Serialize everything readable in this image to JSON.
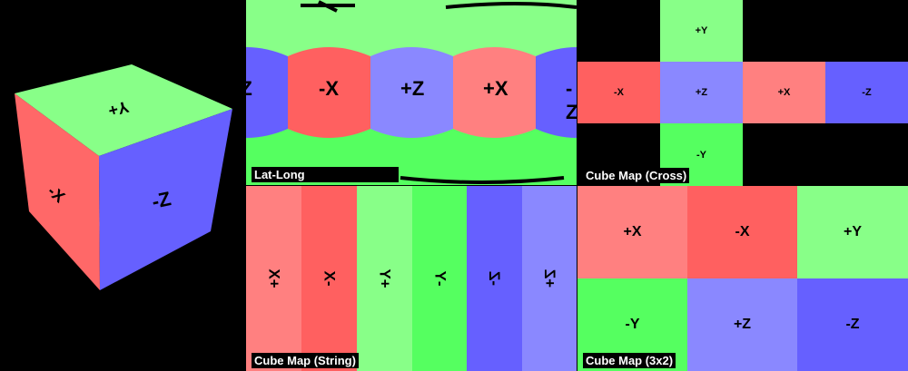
{
  "colors": {
    "+X": "#ff8080",
    "-X": "#ff6060",
    "+Y": "#88ff88",
    "-Y": "#55ff60",
    "+Z": "#8a88ff",
    "-Z": "#6660ff"
  },
  "cube_preview": {
    "top": "+Y",
    "left": "-X",
    "right": "-Z"
  },
  "latlong": {
    "caption": "Lat-Long",
    "faces": [
      "-Z",
      "-X",
      "+Z",
      "+X",
      "-Z"
    ]
  },
  "cross": {
    "caption": "Cube Map (Cross)",
    "top": "+Y",
    "middle": [
      "-X",
      "+Z",
      "+X",
      "-Z"
    ],
    "bottom": "-Y"
  },
  "string": {
    "caption": "Cube Map (String)",
    "faces": [
      "+X",
      "-X",
      "+Y",
      "-Y",
      "-Z",
      "+Z"
    ]
  },
  "grid3x2": {
    "caption": "Cube Map (3x2)",
    "faces": [
      "+X",
      "-X",
      "+Y",
      "-Y",
      "+Z",
      "-Z"
    ]
  }
}
